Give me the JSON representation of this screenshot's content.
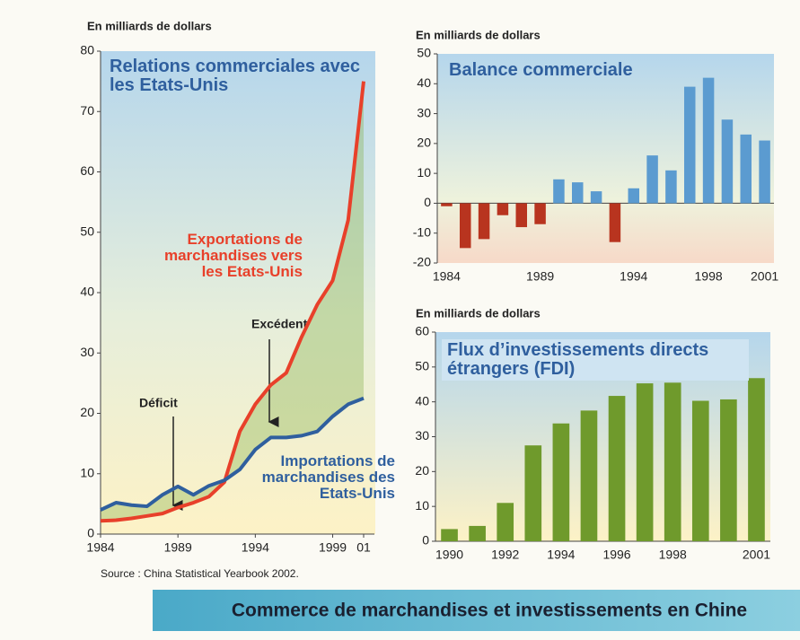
{
  "chart_data": [
    {
      "type": "line",
      "title": "Relations commerciales avec les Etats-Unis",
      "axis_label": "En milliards de dollars",
      "x": [
        1984,
        1985,
        1986,
        1987,
        1988,
        1989,
        1990,
        1991,
        1992,
        1993,
        1994,
        1995,
        1996,
        1997,
        1998,
        1999,
        2000,
        2001
      ],
      "series": [
        {
          "name": "Exportations de marchandises vers les Etats-Unis",
          "color": "#e8402a",
          "values": [
            2.2,
            2.3,
            2.6,
            3.0,
            3.4,
            4.4,
            5.2,
            6.2,
            8.6,
            17,
            21.5,
            24.7,
            26.7,
            32.7,
            38,
            42,
            52,
            75
          ]
        },
        {
          "name": "Importations de marchandises des Etats-Unis",
          "color": "#2f5f9e",
          "values": [
            4,
            5.2,
            4.8,
            4.6,
            6.5,
            7.9,
            6.5,
            8,
            8.9,
            10.7,
            14,
            16,
            16,
            16.3,
            17,
            19.5,
            21.5,
            22.5
          ]
        }
      ],
      "annotations": [
        "Excédent",
        "Déficit"
      ],
      "xlim": [
        1984,
        2001
      ],
      "xticks": [
        1984,
        1989,
        1994,
        1999,
        {
          "value": 2001,
          "label": "01"
        }
      ],
      "ylim": [
        0,
        80
      ],
      "yticks": [
        0,
        10,
        20,
        30,
        40,
        50,
        60,
        70,
        80
      ],
      "source": "Source : China Statistical Yearbook 2002."
    },
    {
      "type": "bar",
      "title": "Balance commerciale",
      "axis_label": "En milliards de dollars",
      "categories": [
        "1984",
        null,
        null,
        null,
        null,
        "1989",
        null,
        null,
        null,
        null,
        "1994",
        null,
        null,
        null,
        "1998",
        null,
        null,
        "2001"
      ],
      "values": [
        -1,
        -15,
        -12,
        -4,
        -8,
        -7,
        8,
        7,
        4,
        -13,
        5,
        16,
        11,
        39,
        42,
        28,
        23,
        21
      ],
      "color": "#5b9bd0",
      "negative_color": "#b8341f",
      "ylim": [
        -20,
        50
      ],
      "yticks": [
        -20,
        -10,
        0,
        10,
        20,
        30,
        40,
        50
      ]
    },
    {
      "type": "bar",
      "title": "Flux d’investissements directs étrangers (FDI)",
      "axis_label": "En milliards de dollars",
      "categories": [
        "1990",
        null,
        "1992",
        null,
        "1994",
        null,
        "1996",
        null,
        "1998",
        null,
        null,
        "2001"
      ],
      "values": [
        3.5,
        4.4,
        11,
        27.5,
        33.8,
        37.5,
        41.7,
        45.3,
        45.5,
        40.3,
        40.7,
        46.8
      ],
      "color": "#6f9a2c",
      "ylim": [
        0,
        60
      ],
      "yticks": [
        0,
        10,
        20,
        30,
        40,
        50,
        60
      ]
    }
  ],
  "banner": "Commerce de marchandises et investissements en Chine"
}
